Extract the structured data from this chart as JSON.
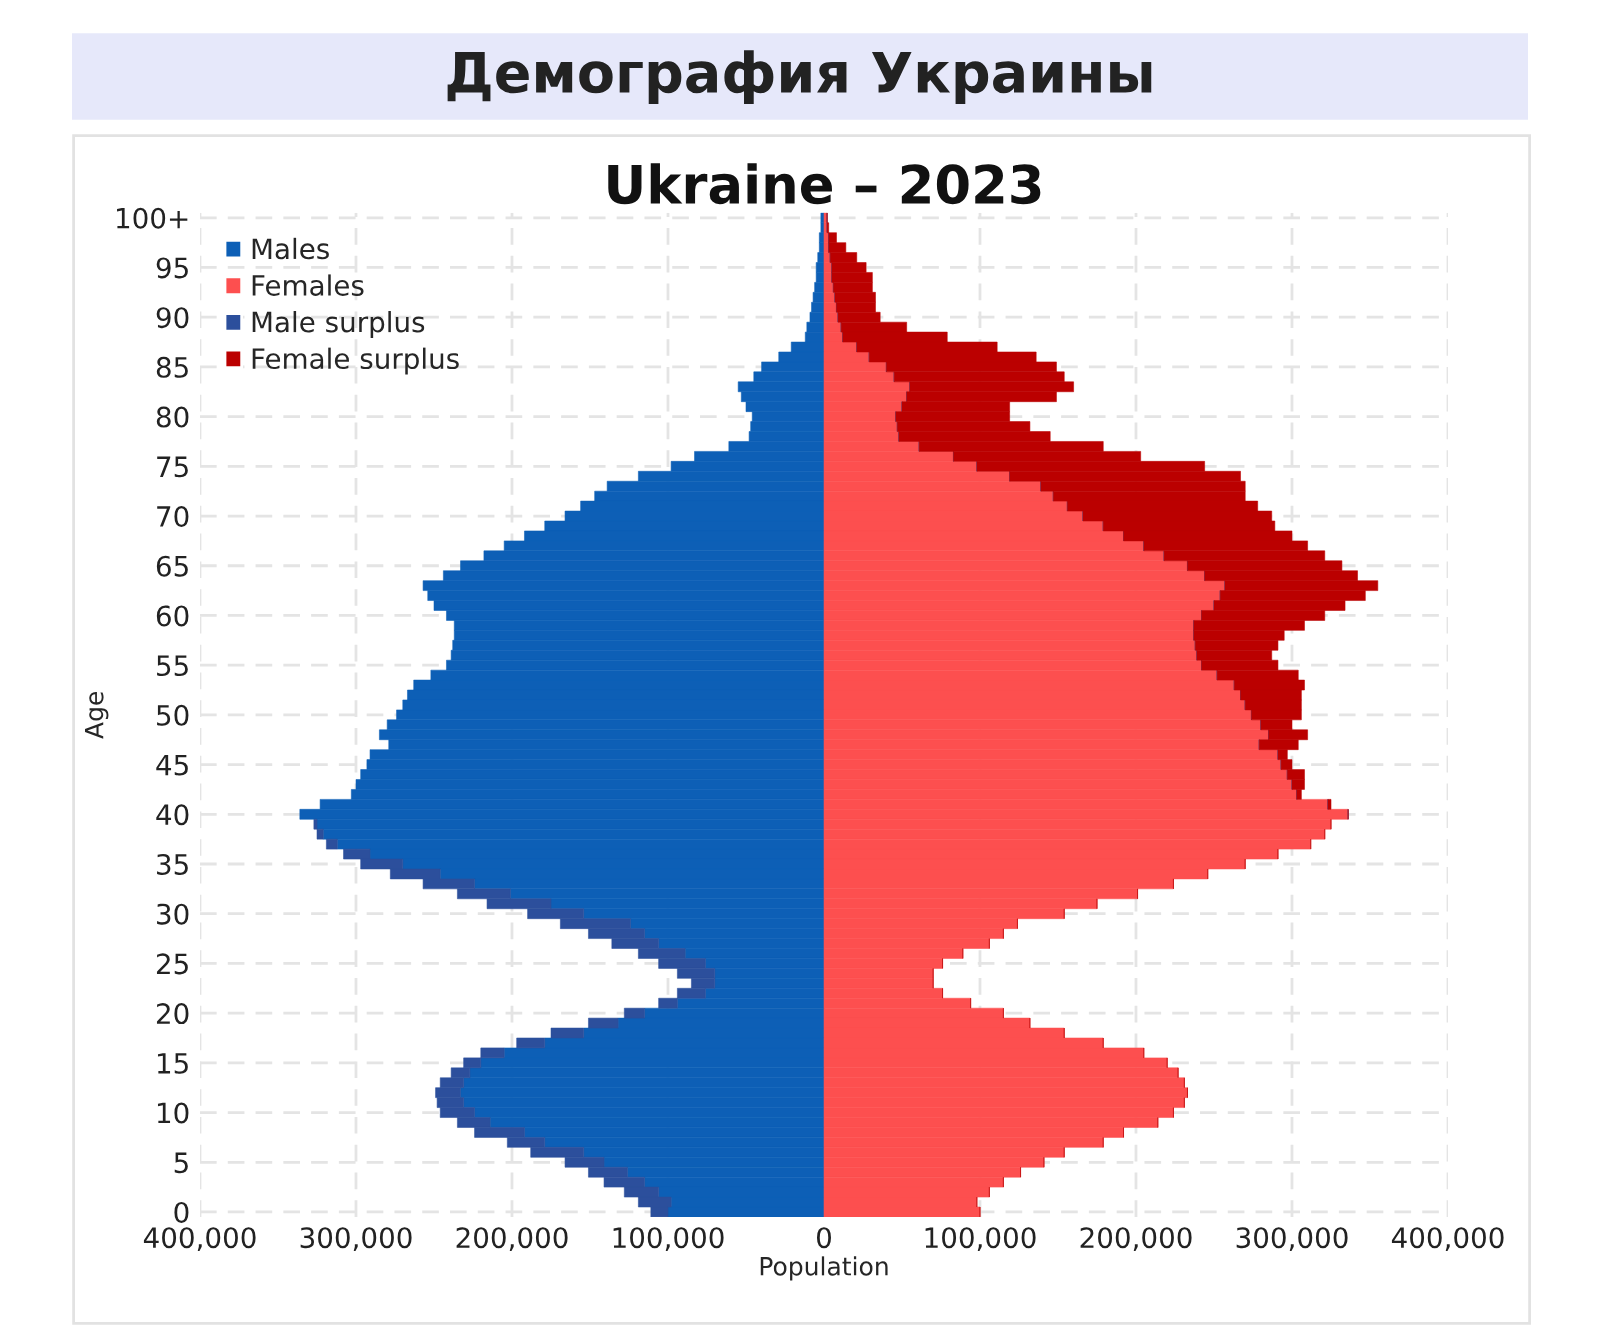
{
  "chart_data": {
    "type": "bar",
    "orientation": "horizontal",
    "stacked": true,
    "title": "Демография Украины",
    "subtitle": "Ukraine – 2023",
    "xlabel": "Population",
    "ylabel": "Age",
    "categories": [
      "100+",
      null,
      null,
      null,
      null,
      "95",
      null,
      null,
      null,
      null,
      "90",
      null,
      null,
      null,
      null,
      "85",
      null,
      null,
      null,
      null,
      "80",
      null,
      null,
      null,
      null,
      "75",
      null,
      null,
      null,
      null,
      "70",
      null,
      null,
      null,
      null,
      "65",
      null,
      null,
      null,
      null,
      "60",
      null,
      null,
      null,
      null,
      "55",
      null,
      null,
      null,
      null,
      "50",
      null,
      null,
      null,
      null,
      "45",
      null,
      null,
      null,
      null,
      "40",
      null,
      null,
      null,
      null,
      "35",
      null,
      null,
      null,
      null,
      "30",
      null,
      null,
      null,
      null,
      "25",
      null,
      null,
      null,
      null,
      "20",
      null,
      null,
      null,
      null,
      "15",
      null,
      null,
      null,
      null,
      "10",
      null,
      null,
      null,
      null,
      "5",
      null,
      null,
      null,
      null,
      "0"
    ],
    "series": [
      {
        "name": "Males",
        "color": "#0d5fb6",
        "values": [
          -2000,
          -2000,
          -3000,
          -3000,
          -4000,
          -5000,
          -5000,
          -6000,
          -7000,
          -8000,
          -9000,
          -11000,
          -12000,
          -21000,
          -29000,
          -40000,
          -45000,
          -55000,
          -53000,
          -50000,
          -46000,
          -47000,
          -48000,
          -61000,
          -83000,
          -98000,
          -119000,
          -139000,
          -147000,
          -156000,
          -166000,
          -179000,
          -192000,
          -205000,
          -218000,
          -233000,
          -244000,
          -257000,
          -254000,
          -250000,
          -242000,
          -237000,
          -237000,
          -238000,
          -239000,
          -242000,
          -252000,
          -263000,
          -267000,
          -270000,
          -274000,
          -280000,
          -285000,
          -279000,
          -291000,
          -293000,
          -297000,
          -300000,
          -303000,
          -323000,
          -336000,
          -325000,
          -321000,
          -312000,
          -291000,
          -270000,
          -246000,
          -224000,
          -201000,
          -175000,
          -154000,
          -124000,
          -115000,
          -106000,
          -89000,
          -76000,
          -70000,
          -70000,
          -76000,
          -94000,
          -115000,
          -132000,
          -154000,
          -179000,
          -205000,
          -220000,
          -227000,
          -231000,
          -233000,
          -231000,
          -224000,
          -214000,
          -192000,
          -179000,
          -154000,
          -141000,
          -126000,
          -115000,
          -106000,
          -98000,
          -100000
        ]
      },
      {
        "name": "Females",
        "color": "#fd4f4f",
        "values": [
          2000,
          2000,
          3000,
          3000,
          4000,
          5000,
          5000,
          6000,
          7000,
          8000,
          9000,
          11000,
          12000,
          21000,
          29000,
          40000,
          45000,
          55000,
          53000,
          50000,
          46000,
          47000,
          48000,
          61000,
          83000,
          98000,
          119000,
          139000,
          147000,
          156000,
          166000,
          179000,
          192000,
          205000,
          218000,
          233000,
          244000,
          257000,
          254000,
          250000,
          242000,
          237000,
          237000,
          238000,
          239000,
          242000,
          252000,
          263000,
          267000,
          270000,
          274000,
          280000,
          285000,
          279000,
          291000,
          293000,
          297000,
          300000,
          303000,
          323000,
          336000,
          325000,
          321000,
          312000,
          291000,
          270000,
          246000,
          224000,
          201000,
          175000,
          154000,
          124000,
          115000,
          106000,
          89000,
          76000,
          70000,
          70000,
          76000,
          94000,
          115000,
          132000,
          154000,
          179000,
          205000,
          220000,
          227000,
          231000,
          233000,
          231000,
          224000,
          214000,
          192000,
          179000,
          154000,
          141000,
          126000,
          115000,
          106000,
          98000,
          100000
        ]
      },
      {
        "name": "Male surplus",
        "color": "#2c4f9c",
        "values": [
          0,
          0,
          0,
          0,
          0,
          0,
          0,
          0,
          0,
          0,
          0,
          0,
          0,
          0,
          0,
          0,
          0,
          0,
          0,
          0,
          0,
          0,
          0,
          0,
          0,
          0,
          0,
          0,
          0,
          0,
          0,
          0,
          0,
          0,
          0,
          0,
          0,
          0,
          0,
          0,
          0,
          0,
          0,
          0,
          0,
          0,
          0,
          0,
          0,
          0,
          0,
          0,
          0,
          0,
          0,
          0,
          0,
          0,
          0,
          0,
          0,
          -2000,
          -4000,
          -7000,
          -17000,
          -27000,
          -32000,
          -33000,
          -34000,
          -41000,
          -36000,
          -45000,
          -36000,
          -30000,
          -30000,
          -30000,
          -24000,
          -15000,
          -18000,
          -12000,
          -13000,
          -19000,
          -21000,
          -18000,
          -15000,
          -11000,
          -12000,
          -15000,
          -16000,
          -17000,
          -22000,
          -21000,
          -32000,
          -24000,
          -34000,
          -25000,
          -25000,
          -26000,
          -22000,
          -21000,
          -11000
        ]
      },
      {
        "name": "Female surplus",
        "color": "#bb0000",
        "values": [
          0,
          1000,
          5000,
          11000,
          17000,
          22000,
          26000,
          25000,
          26000,
          25000,
          27000,
          42000,
          67000,
          90000,
          107000,
          109000,
          109000,
          105000,
          96000,
          69000,
          73000,
          85000,
          97000,
          118000,
          120000,
          146000,
          148000,
          131000,
          123000,
          122000,
          121000,
          110000,
          108000,
          105000,
          103000,
          99000,
          98000,
          98000,
          93000,
          84000,
          79000,
          71000,
          58000,
          53000,
          48000,
          49000,
          52000,
          45000,
          39000,
          36000,
          32000,
          20000,
          25000,
          25000,
          6000,
          7000,
          11000,
          8000,
          3000,
          2000,
          0,
          0,
          0,
          0,
          0,
          0,
          0,
          0,
          0,
          0,
          0,
          0,
          0,
          0,
          0,
          0,
          0,
          0,
          0,
          0,
          0,
          0,
          0,
          0,
          0,
          0,
          0,
          0,
          0,
          0,
          0,
          0,
          0,
          0,
          0,
          0,
          0,
          0,
          0,
          0,
          0
        ]
      }
    ],
    "xlim": [
      -400000,
      400000
    ],
    "xticks": [
      {
        "value": -400000,
        "label": "400,000"
      },
      {
        "value": -300000,
        "label": "300,000"
      },
      {
        "value": -200000,
        "label": "200,000"
      },
      {
        "value": -100000,
        "label": "100,000"
      },
      0,
      {
        "value": 100000,
        "label": "100,000"
      },
      {
        "value": 200000,
        "label": "200,000"
      },
      {
        "value": 300000,
        "label": "300,000"
      },
      {
        "value": 400000,
        "label": "400,000"
      }
    ],
    "grid": true,
    "legend": "top left"
  }
}
